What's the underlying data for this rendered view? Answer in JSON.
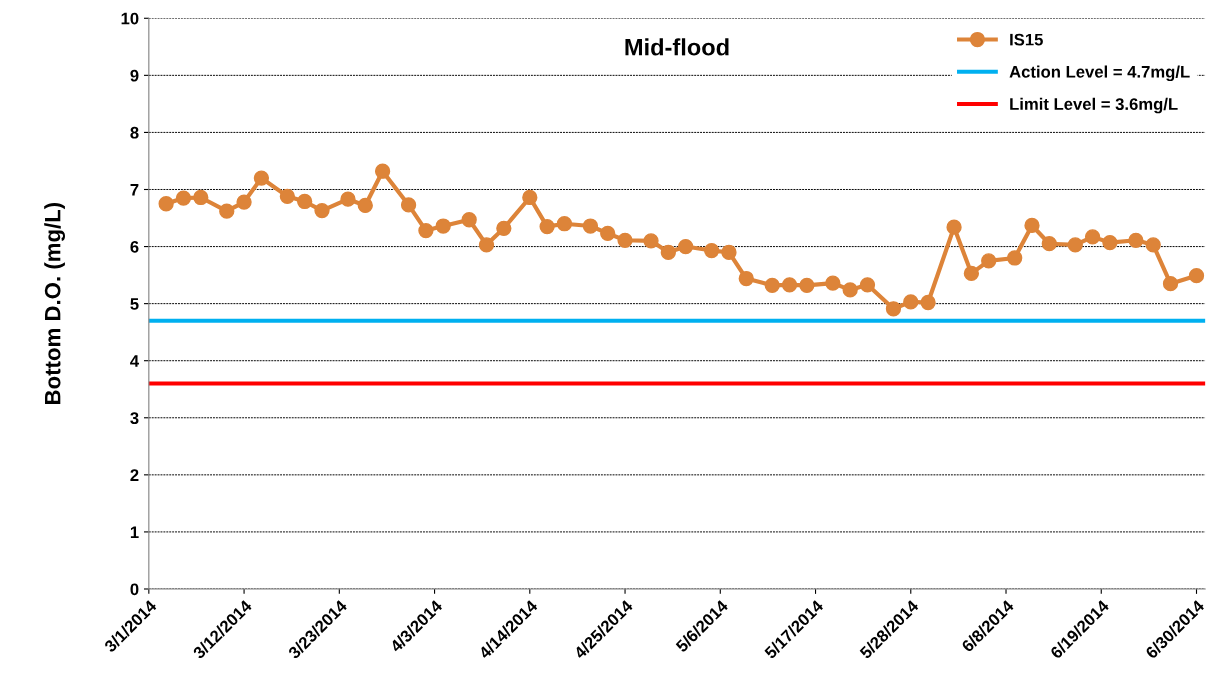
{
  "chart_data": {
    "type": "line",
    "title": "Mid-flood",
    "ylabel": "Bottom D.O. (mg/L)",
    "x": [
      "2014-03-03",
      "2014-03-05",
      "2014-03-07",
      "2014-03-10",
      "2014-03-12",
      "2014-03-14",
      "2014-03-17",
      "2014-03-19",
      "2014-03-21",
      "2014-03-24",
      "2014-03-26",
      "2014-03-28",
      "2014-03-31",
      "2014-04-02",
      "2014-04-04",
      "2014-04-07",
      "2014-04-09",
      "2014-04-11",
      "2014-04-14",
      "2014-04-16",
      "2014-04-18",
      "2014-04-21",
      "2014-04-23",
      "2014-04-25",
      "2014-04-28",
      "2014-04-30",
      "2014-05-02",
      "2014-05-05",
      "2014-05-07",
      "2014-05-09",
      "2014-05-12",
      "2014-05-14",
      "2014-05-16",
      "2014-05-19",
      "2014-05-21",
      "2014-05-23",
      "2014-05-26",
      "2014-05-28",
      "2014-05-30",
      "2014-06-02",
      "2014-06-04",
      "2014-06-06",
      "2014-06-09",
      "2014-06-11",
      "2014-06-13",
      "2014-06-16",
      "2014-06-18",
      "2014-06-20",
      "2014-06-23",
      "2014-06-25",
      "2014-06-27",
      "2014-06-30"
    ],
    "series": [
      {
        "name": "IS15",
        "color": "#dd8439",
        "values": [
          6.75,
          6.85,
          6.86,
          6.62,
          6.78,
          7.2,
          6.88,
          6.79,
          6.63,
          6.83,
          6.72,
          7.32,
          6.73,
          6.28,
          6.36,
          6.47,
          6.03,
          6.32,
          6.86,
          6.35,
          6.4,
          6.36,
          6.23,
          6.11,
          6.1,
          5.9,
          6.0,
          5.93,
          5.9,
          5.44,
          5.32,
          5.33,
          5.32,
          5.36,
          5.24,
          5.33,
          4.91,
          5.03,
          5.02,
          6.34,
          5.53,
          5.75,
          5.8,
          6.37,
          6.05,
          6.03,
          6.17,
          6.07,
          6.11,
          6.03,
          5.35,
          5.49
        ]
      }
    ],
    "ref_lines": [
      {
        "axis": "y",
        "value": 4.7,
        "label": "Action Level = 4.7mg/L",
        "color": "#00b0f0"
      },
      {
        "axis": "y",
        "value": 3.6,
        "label": "Limit Level = 3.6mg/L",
        "color": "#ff0000"
      }
    ],
    "xlim": [
      "2014-03-01",
      "2014-07-01"
    ],
    "xticks": [
      {
        "value": "2014-03-01",
        "label": "3/1/2014"
      },
      {
        "value": "2014-03-12",
        "label": "3/12/2014"
      },
      {
        "value": "2014-03-23",
        "label": "3/23/2014"
      },
      {
        "value": "2014-04-03",
        "label": "4/3/2014"
      },
      {
        "value": "2014-04-14",
        "label": "4/14/2014"
      },
      {
        "value": "2014-04-25",
        "label": "4/25/2014"
      },
      {
        "value": "2014-05-06",
        "label": "5/6/2014"
      },
      {
        "value": "2014-05-17",
        "label": "5/17/2014"
      },
      {
        "value": "2014-05-28",
        "label": "5/28/2014"
      },
      {
        "value": "2014-06-08",
        "label": "6/8/2014"
      },
      {
        "value": "2014-06-19",
        "label": "6/19/2014"
      },
      {
        "value": "2014-06-30",
        "label": "6/30/2014"
      }
    ],
    "ylim": [
      0,
      10
    ],
    "yticks": [
      0,
      1,
      2,
      3,
      4,
      5,
      6,
      7,
      8,
      9,
      10
    ],
    "grid": "y",
    "legend": "top right",
    "marker": "circle",
    "line_style": "solid"
  }
}
